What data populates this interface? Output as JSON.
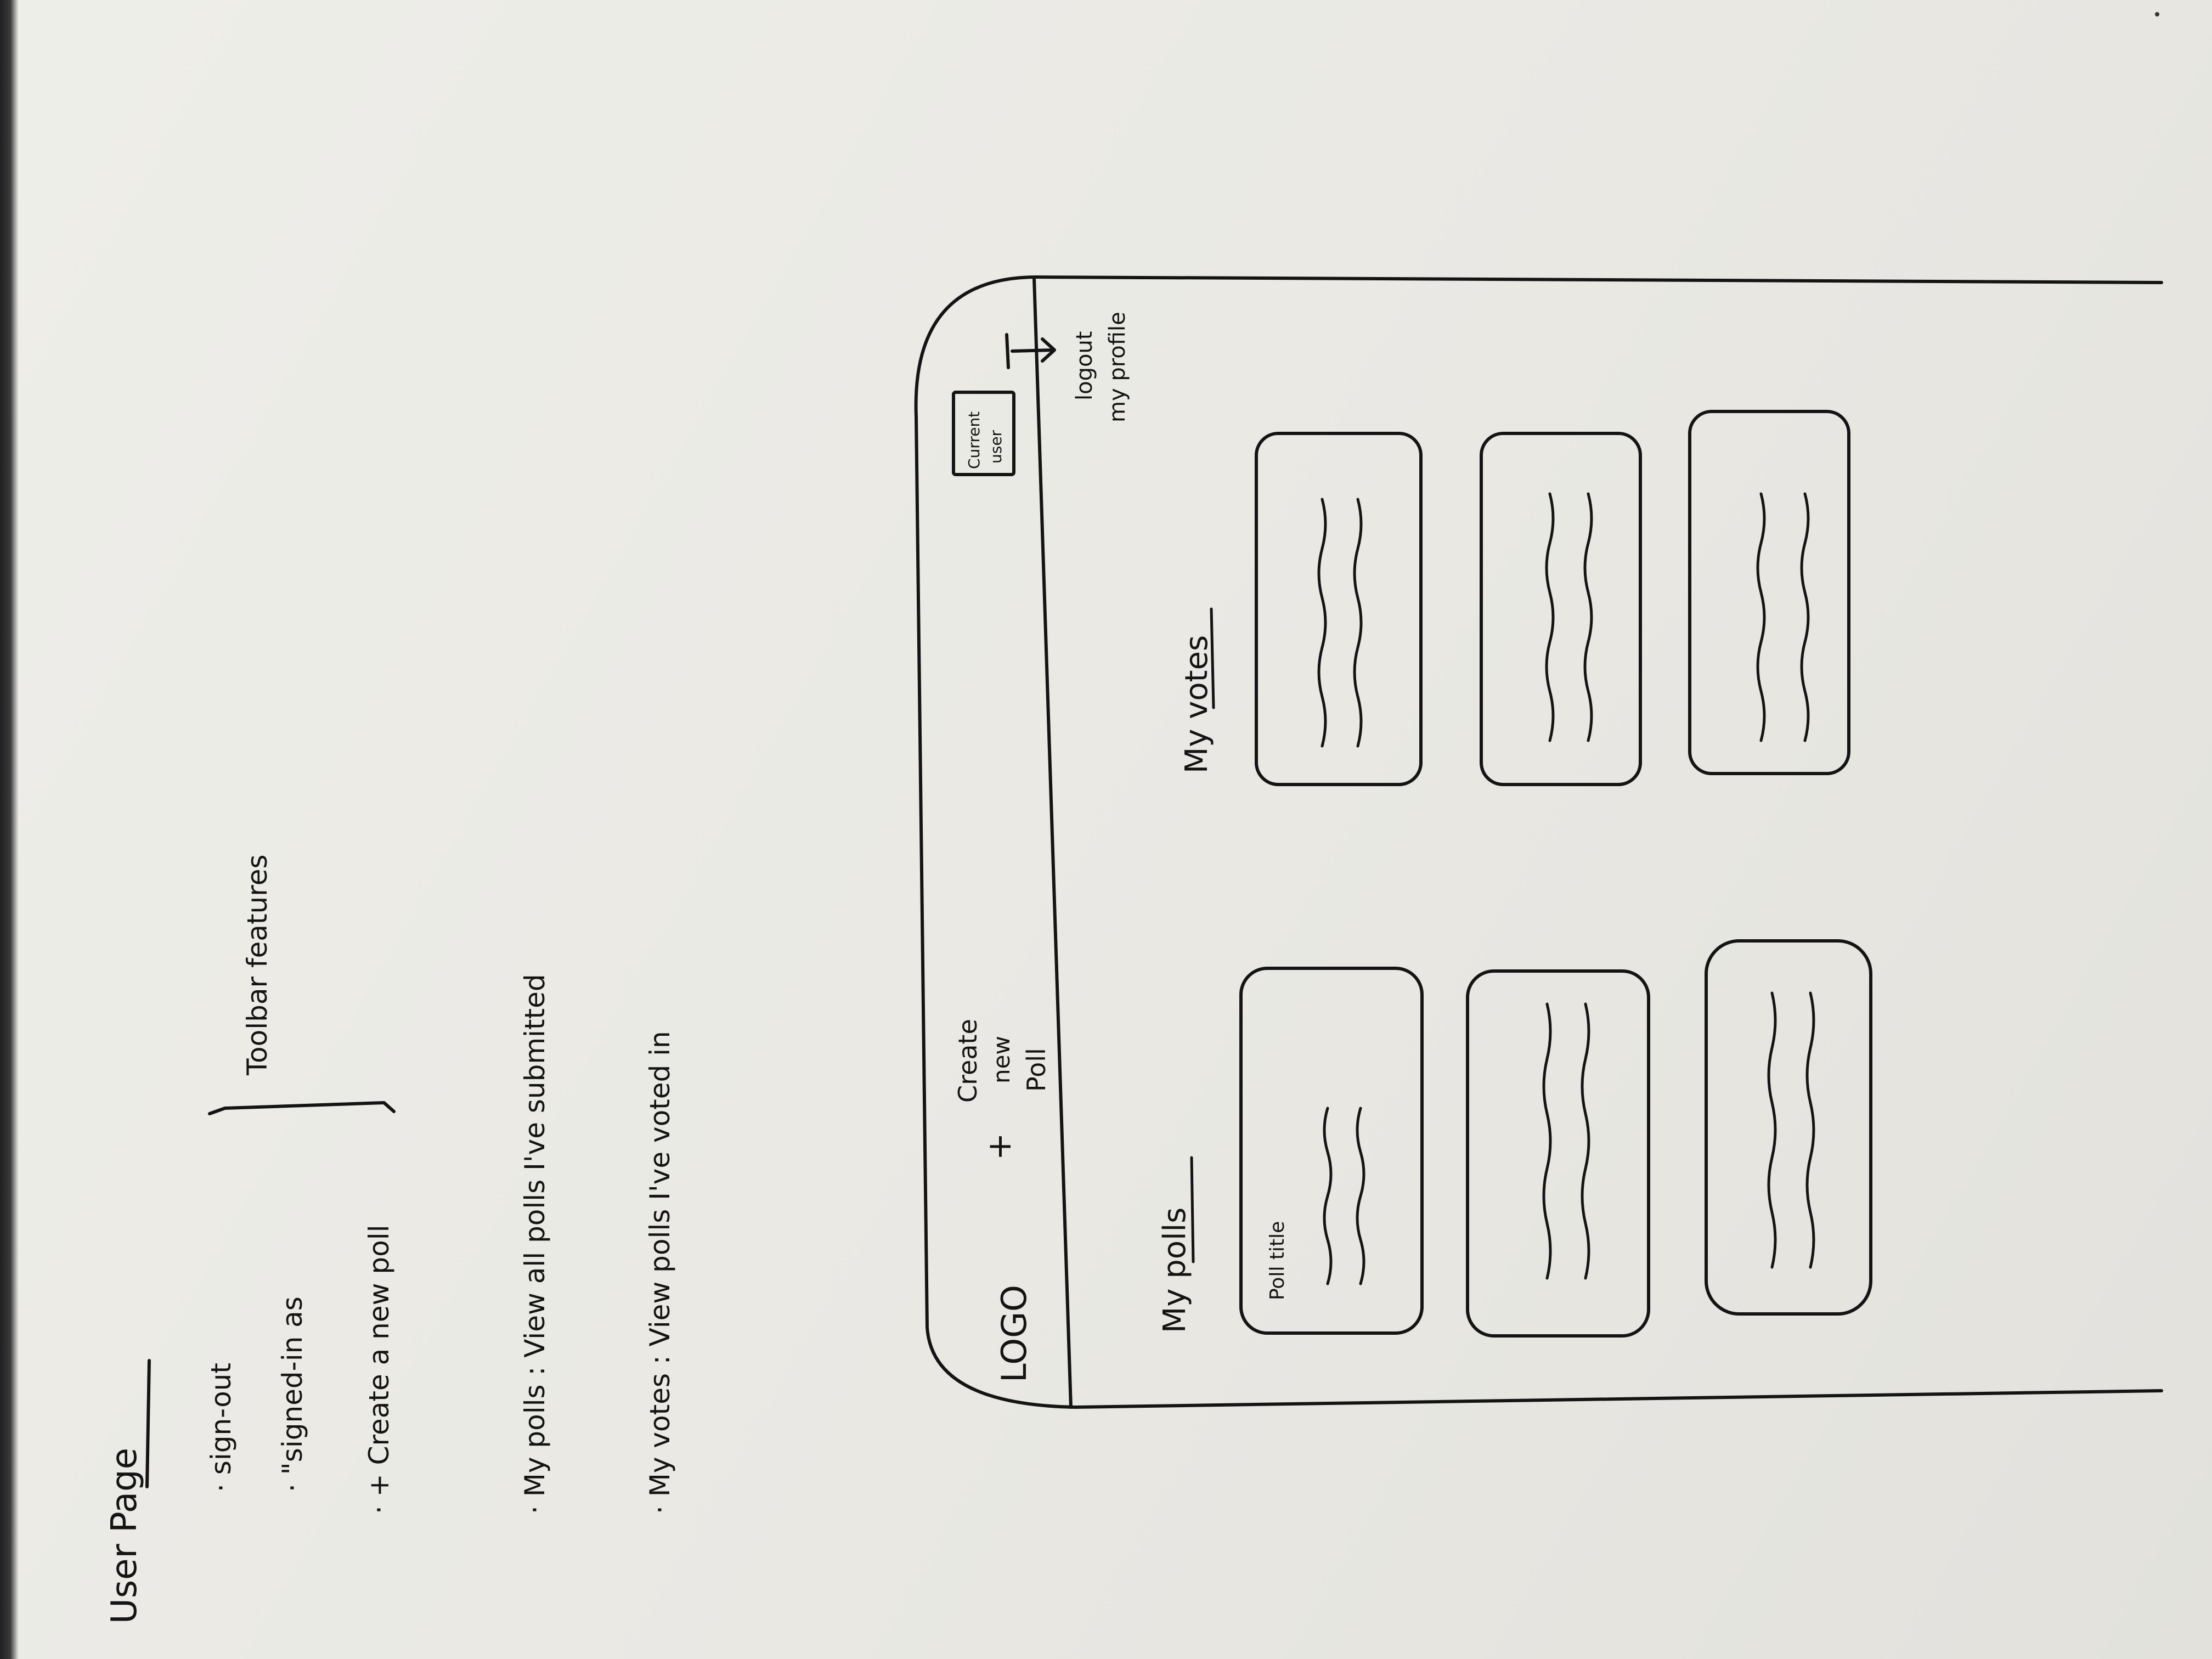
{
  "notes": {
    "heading": "User Page",
    "items": [
      "· sign-out",
      "· \"signed-in as",
      "· + Create a new poll",
      "· My polls : View all polls I've submitted",
      "· My votes : View polls I've voted in"
    ],
    "bracket_label": "Toolbar features"
  },
  "wireframe": {
    "toolbar": {
      "logo": "LOGO",
      "create_icon": "+",
      "create_label_lines": [
        "Create",
        "new",
        "Poll"
      ],
      "user_box_lines": [
        "Current",
        "user"
      ],
      "menu_lines": [
        "logout",
        "my profile"
      ]
    },
    "sections": {
      "polls_heading": "My polls",
      "votes_heading": "My votes"
    },
    "card_title": "Poll title"
  }
}
